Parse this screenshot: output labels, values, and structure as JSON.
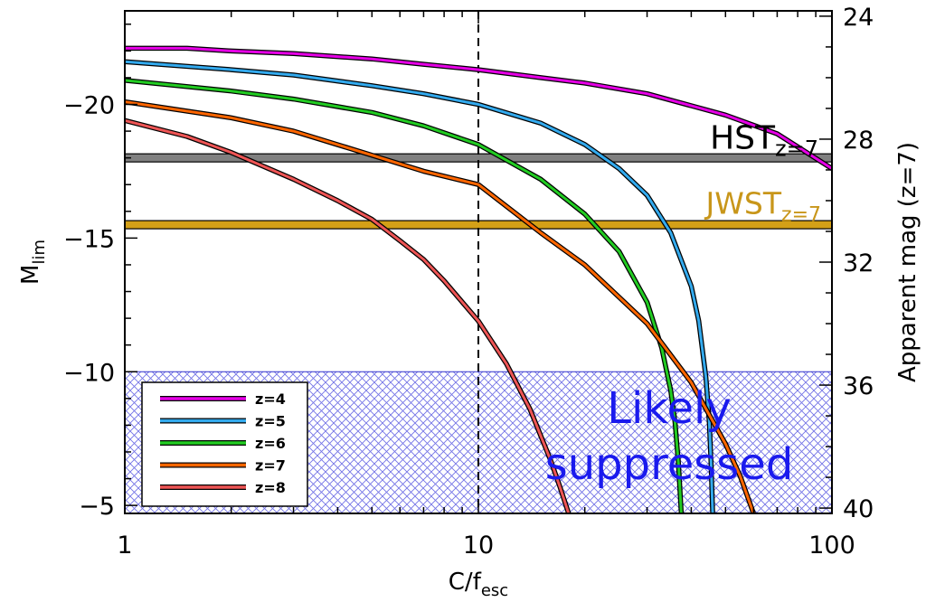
{
  "chart_data": {
    "type": "line",
    "xlabel": {
      "main": "C/f",
      "sub": "esc"
    },
    "ylabel": {
      "main": "M",
      "sub": "lim"
    },
    "y2label": "Apparent mag (z=7)",
    "xscale": "log",
    "xlim": [
      1,
      100
    ],
    "ylim": [
      -4.7,
      -23.5
    ],
    "x_ticks": [
      {
        "value": 1,
        "label": "1"
      },
      {
        "value": 10,
        "label": "10"
      },
      {
        "value": 100,
        "label": "100"
      }
    ],
    "y_ticks": [
      {
        "value": -20,
        "label": "−20"
      },
      {
        "value": -15,
        "label": "−15"
      },
      {
        "value": -10,
        "label": "−10"
      },
      {
        "value": -5,
        "label": "−5"
      }
    ],
    "y2_ticks": [
      {
        "value": -23.3,
        "label": "24"
      },
      {
        "value": -18.7,
        "label": "28"
      },
      {
        "value": -14.1,
        "label": "32"
      },
      {
        "value": -9.5,
        "label": "36"
      },
      {
        "value": -4.9,
        "label": "40"
      }
    ],
    "series": [
      {
        "name": "z=4",
        "color": "#e600e6",
        "x": [
          1,
          1.5,
          2,
          3,
          5,
          7,
          10,
          15,
          20,
          30,
          50,
          70,
          100
        ],
        "y": [
          -22.1,
          -22.1,
          -22.0,
          -21.9,
          -21.7,
          -21.5,
          -21.3,
          -21.0,
          -20.8,
          -20.4,
          -19.6,
          -18.9,
          -17.6
        ]
      },
      {
        "name": "z=5",
        "color": "#33aaee",
        "x": [
          1,
          2,
          3,
          5,
          7,
          10,
          15,
          20,
          25,
          30,
          35,
          40,
          42,
          44,
          45,
          45.5,
          46
        ],
        "y": [
          -21.6,
          -21.3,
          -21.1,
          -20.7,
          -20.4,
          -20.0,
          -19.3,
          -18.5,
          -17.6,
          -16.6,
          -15.2,
          -13.2,
          -11.9,
          -9.8,
          -8.1,
          -6.6,
          -4.7
        ]
      },
      {
        "name": "z=6",
        "color": "#22cc22",
        "x": [
          1,
          2,
          3,
          5,
          7,
          10,
          15,
          20,
          25,
          30,
          33,
          35,
          36,
          36.8,
          37.5
        ],
        "y": [
          -20.9,
          -20.5,
          -20.2,
          -19.7,
          -19.2,
          -18.5,
          -17.2,
          -15.9,
          -14.5,
          -12.6,
          -10.9,
          -9.3,
          -8.1,
          -6.6,
          -4.7
        ]
      },
      {
        "name": "z=7",
        "color": "#ff6600",
        "x": [
          1,
          2,
          3,
          5,
          7,
          10,
          15,
          20,
          30,
          40,
          50,
          55,
          60
        ],
        "y": [
          -20.1,
          -19.5,
          -19.0,
          -18.1,
          -17.5,
          -17.0,
          -15.2,
          -14.0,
          -11.8,
          -9.6,
          -7.3,
          -6.1,
          -4.7
        ]
      },
      {
        "name": "z=8",
        "color": "#ee5555",
        "x": [
          1,
          1.5,
          2,
          3,
          4,
          5,
          6,
          7,
          8,
          10,
          12,
          14,
          16,
          17,
          18
        ],
        "y": [
          -19.4,
          -18.8,
          -18.2,
          -17.2,
          -16.4,
          -15.7,
          -14.9,
          -14.2,
          -13.4,
          -11.9,
          -10.3,
          -8.6,
          -6.7,
          -5.7,
          -4.7
        ]
      }
    ],
    "reference_lines": [
      {
        "label": "HST",
        "sub": "z=7",
        "y": -18,
        "color": "#808080"
      },
      {
        "label": "JWST",
        "sub": "z=7",
        "y": -15.5,
        "color": "#d4a017"
      }
    ],
    "vertical_line": {
      "x": 10,
      "style": "dashed",
      "color": "#000000"
    },
    "shaded_region": {
      "label_lines": [
        "Likely",
        "suppressed"
      ],
      "y_from": -10,
      "y_to": -4.7,
      "color": "#3333cc"
    },
    "legend": {
      "placement": "bottom-left"
    },
    "grid": false
  }
}
